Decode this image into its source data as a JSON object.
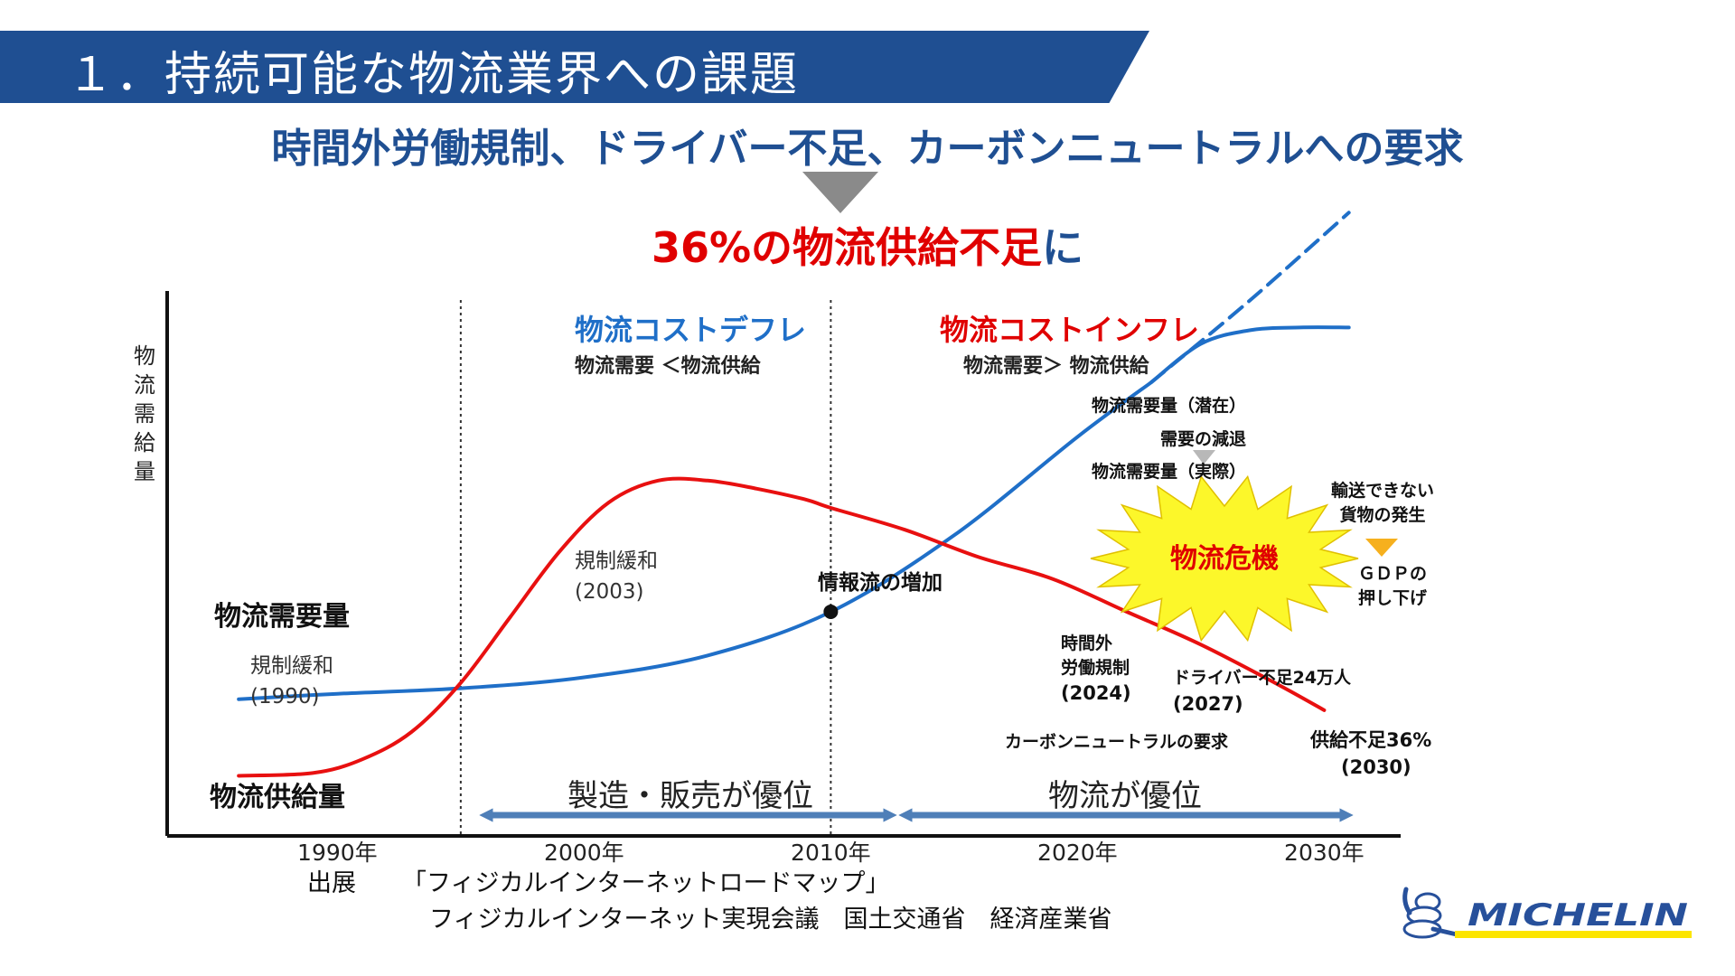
{
  "header": {
    "title": "１．持続可能な物流業界への課題",
    "subtitle": "時間外労働規制、ドライバー不足、カーボンニュートラルへの要求",
    "headline_red": "36%の物流供給不足",
    "headline_blue": "に"
  },
  "chart_data": {
    "type": "line",
    "ylabel": "物流需給量",
    "x_ticks": [
      "1990年",
      "2000年",
      "2010年",
      "2020年",
      "2030年"
    ],
    "series": [
      {
        "name": "物流需要量",
        "color": "#1f6fc8",
        "x": [
          1986,
          1990,
          1995,
          2000,
          2005,
          2010,
          2015,
          2020,
          2023
        ],
        "y": [
          25,
          26,
          27,
          29,
          33,
          41,
          55,
          73,
          83
        ]
      },
      {
        "name": "物流需要量（潜在）",
        "color": "#1f6fc8",
        "dashed": true,
        "x": [
          2023,
          2027,
          2031
        ],
        "y": [
          83,
          98,
          114
        ]
      },
      {
        "name": "物流需要量（実際）",
        "color": "#1f6fc8",
        "x": [
          2023,
          2025,
          2027,
          2029,
          2031
        ],
        "y": [
          83,
          90,
          92.5,
          93,
          93
        ]
      },
      {
        "name": "物流供給量",
        "color": "#e81010",
        "x": [
          1986,
          1989,
          1991,
          1993,
          1995,
          1997,
          1999,
          2001,
          2003,
          2005,
          2007,
          2009,
          2010,
          2013,
          2016,
          2019,
          2022,
          2025,
          2028,
          2030
        ],
        "y": [
          11,
          11.5,
          14,
          19,
          28,
          40,
          52,
          61,
          65,
          65,
          63.5,
          61.5,
          60,
          56,
          51,
          47,
          41,
          35,
          28,
          23
        ]
      }
    ],
    "vlines": [
      1995,
      2010
    ],
    "marker": {
      "x": 2010,
      "y": 41
    },
    "annotations": {
      "deflation_title": "物流コストデフレ",
      "deflation_sub": "物流需要 ＜物流供給",
      "inflation_title": "物流コストインフレ",
      "inflation_sub": "物流需要＞ 物流供給",
      "demand_label": "物流需要量",
      "supply_label": "物流供給量",
      "dereg1990_a": "規制緩和",
      "dereg1990_b": "(1990)",
      "dereg2003_a": "規制緩和",
      "dereg2003_b": "(2003)",
      "info_flow": "情報流の増加",
      "latent": "物流需要量（潜在）",
      "decline": "需要の減退",
      "actual": "物流需要量（実際）",
      "crisis": "物流危機",
      "undeliverable_a": "輸送できない",
      "undeliverable_b": "貨物の発生",
      "gdp_a": "ＧＤＰの",
      "gdp_b": "押し下げ",
      "overtime_a": "時間外",
      "overtime_b": "労働規制",
      "overtime_c": "(2024)",
      "driver_a": "ドライバー不足24万人",
      "driver_b": "(2027)",
      "carbon": "カーボンニュートラルの要求",
      "shortage_a": "供給不足36%",
      "shortage_b": "(2030)",
      "mfg_arrow": "製造・販売が優位",
      "logi_arrow": "物流が優位"
    }
  },
  "source": {
    "label": "出展",
    "line1": "「フィジカルインターネットロードマップ」",
    "line2": "フィジカルインターネット実現会議　国土交通省　経済産業省"
  },
  "logo": {
    "text": "MICHELIN",
    "color": "#27509b",
    "accent": "#fce500"
  }
}
